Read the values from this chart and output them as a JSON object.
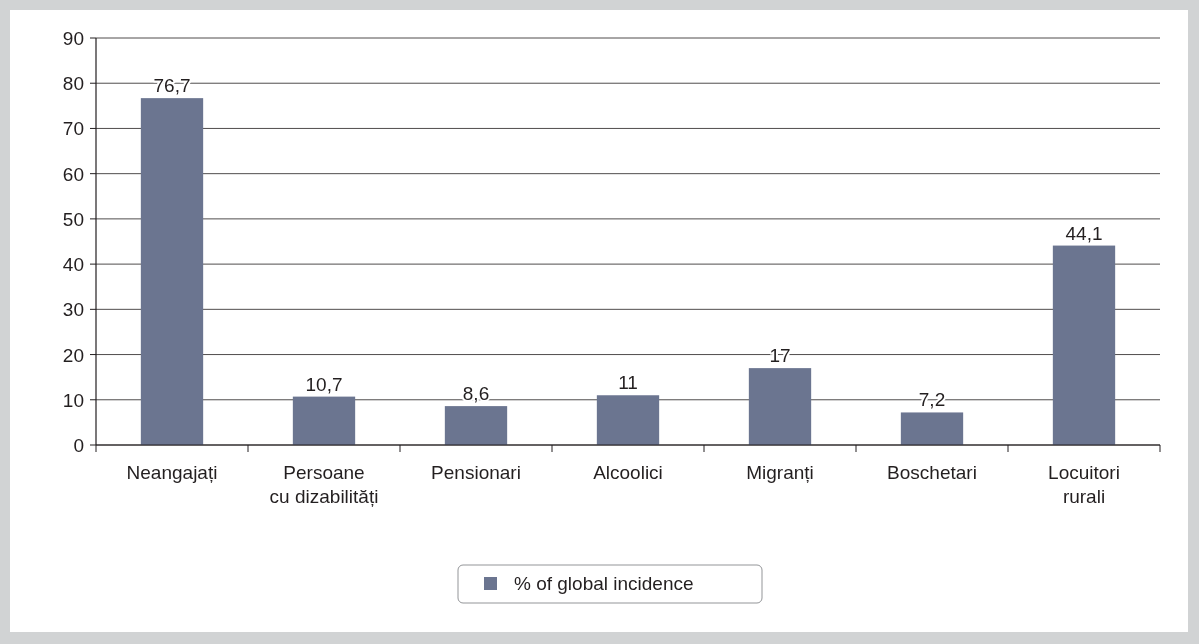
{
  "chart_data": {
    "type": "bar",
    "categories": [
      "Neangajați",
      "Persoane\ncu dizabilități",
      "Pensionari",
      "Alcoolici",
      "Migranți",
      "Boschetari",
      "Locuitori\nrurali"
    ],
    "series": [
      {
        "name": "% of global incidence",
        "color": "#6b7590",
        "values": [
          76.7,
          10.7,
          8.6,
          11,
          17,
          7.2,
          44.1
        ],
        "value_labels": [
          "76,7",
          "10,7",
          "8,6",
          "11",
          "17",
          "7,2",
          "44,1"
        ]
      }
    ],
    "ylim": [
      0,
      90
    ],
    "yticks": [
      0,
      10,
      20,
      30,
      40,
      50,
      60,
      70,
      80,
      90
    ],
    "grid": "y",
    "legend": "bottom"
  }
}
